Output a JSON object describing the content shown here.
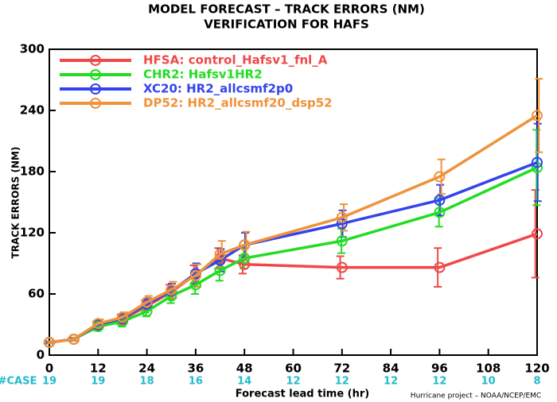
{
  "chart_data": {
    "type": "line",
    "title": "MODEL FORECAST – TRACK ERRORS (NM)",
    "subtitle": "VERIFICATION FOR HAFS",
    "xlabel": "Forecast lead time (hr)",
    "ylabel": "TRACK ERRORS (NM)",
    "footer": "Hurricane project – NOAA/NCEP/EMC",
    "x": [
      0,
      6,
      12,
      18,
      24,
      30,
      36,
      42,
      48,
      72,
      96,
      120
    ],
    "xlim": [
      0,
      120
    ],
    "xticks": [
      0,
      12,
      24,
      36,
      48,
      60,
      72,
      84,
      96,
      108,
      120
    ],
    "ylim": [
      0,
      300
    ],
    "yticks": [
      0,
      60,
      120,
      180,
      240,
      300
    ],
    "legend": "upper left",
    "series": [
      {
        "name": "HFSA: control_Hafsv1_fnl_A",
        "color": "#f04848",
        "values": [
          12.5,
          15.6,
          29,
          35,
          48,
          62,
          79,
          95,
          89,
          86,
          86,
          119
        ],
        "errors": [
          1,
          1.5,
          4,
          5,
          6,
          7,
          9,
          10,
          9,
          11,
          19,
          43
        ]
      },
      {
        "name": "CHR2: Hafsv1HR2",
        "color": "#22dd22",
        "values": [
          12.5,
          15.6,
          28,
          33,
          43,
          58,
          69,
          83,
          95,
          112,
          140,
          184
        ],
        "errors": [
          1,
          1.5,
          4,
          5,
          5,
          7,
          9,
          10,
          10,
          12,
          14,
          37
        ]
      },
      {
        "name": "XC20: HR2_allcsmf2p0",
        "color": "#3344ee",
        "values": [
          12.5,
          15.6,
          30,
          36,
          50,
          63,
          80,
          93,
          108,
          129,
          152,
          189
        ],
        "errors": [
          1,
          1.5,
          4,
          5,
          6,
          7,
          10,
          11,
          12,
          13,
          15,
          38
        ]
      },
      {
        "name": "DP52: HR2_allcsmf20_dsp52",
        "color": "#f0923a",
        "values": [
          12.5,
          15.6,
          31,
          37,
          52,
          64,
          78,
          99,
          108,
          135,
          175,
          235
        ],
        "errors": [
          1,
          1.5,
          4,
          5,
          6,
          8,
          11,
          13,
          13,
          13,
          17,
          36
        ]
      }
    ],
    "cases": {
      "label": "#CASE",
      "x": [
        0,
        12,
        24,
        36,
        48,
        60,
        72,
        84,
        96,
        108,
        120
      ],
      "values": [
        19,
        19,
        18,
        16,
        14,
        12,
        12,
        12,
        12,
        10,
        8
      ],
      "color": "#22bbcc"
    }
  }
}
